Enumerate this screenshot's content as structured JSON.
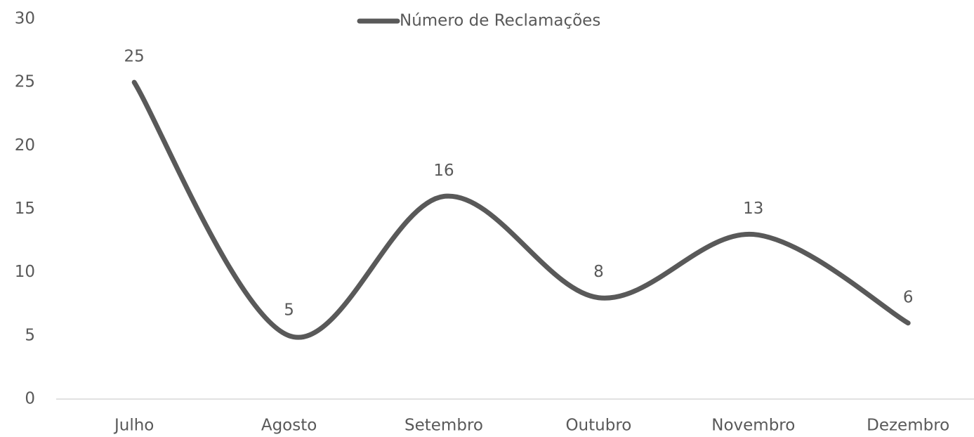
{
  "chart_data": {
    "type": "line",
    "categories": [
      "Julho",
      "Agosto",
      "Setembro",
      "Outubro",
      "Novembro",
      "Dezembro"
    ],
    "series": [
      {
        "name": "Número de Reclamações",
        "color": "#595959",
        "values": [
          25,
          5,
          16,
          8,
          13,
          6
        ]
      }
    ],
    "ylim": [
      0,
      30
    ],
    "yticks": [
      0,
      5,
      10,
      15,
      20,
      25,
      30
    ],
    "grid": false,
    "legend": "top",
    "smooth": true
  }
}
